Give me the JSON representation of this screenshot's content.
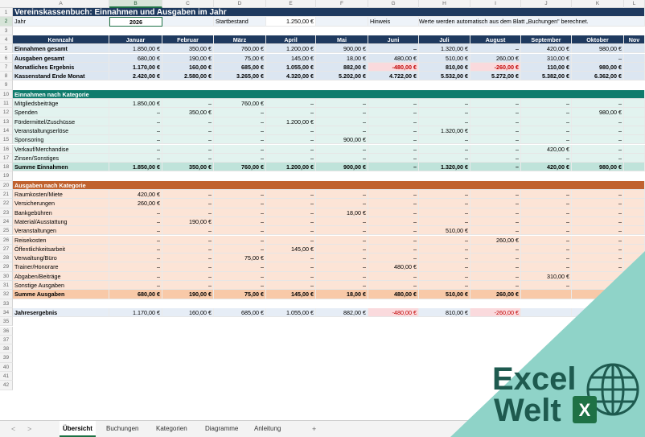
{
  "columns": [
    "A",
    "B",
    "C",
    "D",
    "E",
    "F",
    "G",
    "H",
    "I",
    "J",
    "K",
    "L"
  ],
  "title": "Vereinskassenbuch: Einnahmen und Ausgaben im Jahr",
  "row2": {
    "jahr_label": "Jahr",
    "jahr": "2026",
    "startbestand_label": "Startbestand",
    "startbestand": "1.250,00 €",
    "hinweis_label": "Hinweis",
    "hinweis": "Werte werden automatisch aus dem Blatt „Buchungen\" berechnet."
  },
  "header": [
    "Kennzahl",
    "Januar",
    "Februar",
    "März",
    "April",
    "Mai",
    "Juni",
    "Juli",
    "August",
    "September",
    "Oktober",
    "Nov"
  ],
  "kpis": [
    {
      "label": "Einnahmen gesamt",
      "values": [
        "1.850,00 €",
        "350,00 €",
        "760,00 €",
        "1.200,00 €",
        "900,00 €",
        "–",
        "1.320,00 €",
        "–",
        "420,00 €",
        "980,00 €",
        ""
      ]
    },
    {
      "label": "Ausgaben gesamt",
      "values": [
        "680,00 €",
        "190,00 €",
        "75,00 €",
        "145,00 €",
        "18,00 €",
        "480,00 €",
        "510,00 €",
        "260,00 €",
        "310,00 €",
        "–",
        ""
      ]
    },
    {
      "label": "Monatliches Ergebnis",
      "values": [
        "1.170,00 €",
        "160,00 €",
        "685,00 €",
        "1.055,00 €",
        "882,00 €",
        "-480,00 €",
        "810,00 €",
        "-260,00 €",
        "110,00 €",
        "980,00 €",
        ""
      ]
    },
    {
      "label": "Kassenstand Ende Monat",
      "values": [
        "2.420,00 €",
        "2.580,00 €",
        "3.265,00 €",
        "4.320,00 €",
        "5.202,00 €",
        "4.722,00 €",
        "5.532,00 €",
        "5.272,00 €",
        "5.382,00 €",
        "6.362,00 €",
        ""
      ]
    }
  ],
  "income_section": "Einnahmen nach Kategorie",
  "income": [
    {
      "label": "Mitgliedsbeiträge",
      "values": [
        "1.850,00 €",
        "–",
        "760,00 €",
        "–",
        "–",
        "–",
        "–",
        "–",
        "–",
        "–"
      ]
    },
    {
      "label": "Spenden",
      "values": [
        "–",
        "350,00 €",
        "–",
        "–",
        "–",
        "–",
        "–",
        "–",
        "–",
        "980,00 €"
      ]
    },
    {
      "label": "Fördermittel/Zuschüsse",
      "values": [
        "–",
        "–",
        "–",
        "1.200,00 €",
        "–",
        "–",
        "–",
        "–",
        "–",
        "–"
      ]
    },
    {
      "label": "Veranstaltungserlöse",
      "values": [
        "–",
        "–",
        "–",
        "–",
        "–",
        "–",
        "1.320,00 €",
        "–",
        "–",
        "–"
      ]
    },
    {
      "label": "Sponsoring",
      "values": [
        "–",
        "–",
        "–",
        "–",
        "900,00 €",
        "–",
        "–",
        "–",
        "–",
        "–"
      ]
    },
    {
      "label": "Verkauf/Merchandise",
      "values": [
        "–",
        "–",
        "–",
        "–",
        "–",
        "–",
        "–",
        "–",
        "420,00 €",
        "–"
      ]
    },
    {
      "label": "Zinsen/Sonstiges",
      "values": [
        "–",
        "–",
        "–",
        "–",
        "–",
        "–",
        "–",
        "–",
        "–",
        "–"
      ]
    }
  ],
  "income_sum": {
    "label": "Summe Einnahmen",
    "values": [
      "1.850,00 €",
      "350,00 €",
      "760,00 €",
      "1.200,00 €",
      "900,00 €",
      "–",
      "1.320,00 €",
      "–",
      "420,00 €",
      "980,00 €"
    ]
  },
  "expense_section": "Ausgaben nach Kategorie",
  "expenses": [
    {
      "label": "Raumkosten/Miete",
      "values": [
        "420,00 €",
        "–",
        "–",
        "–",
        "–",
        "–",
        "–",
        "–",
        "–",
        "–"
      ]
    },
    {
      "label": "Versicherungen",
      "values": [
        "260,00 €",
        "–",
        "–",
        "–",
        "–",
        "–",
        "–",
        "–",
        "–",
        "–"
      ]
    },
    {
      "label": "Bankgebühren",
      "values": [
        "–",
        "–",
        "–",
        "–",
        "18,00 €",
        "–",
        "–",
        "–",
        "–",
        "–"
      ]
    },
    {
      "label": "Material/Ausstattung",
      "values": [
        "–",
        "190,00 €",
        "–",
        "–",
        "–",
        "–",
        "–",
        "–",
        "–",
        "–"
      ]
    },
    {
      "label": "Veranstaltungen",
      "values": [
        "–",
        "–",
        "–",
        "–",
        "–",
        "–",
        "510,00 €",
        "–",
        "–",
        "–"
      ]
    },
    {
      "label": "Reisekosten",
      "values": [
        "–",
        "–",
        "–",
        "–",
        "–",
        "–",
        "–",
        "260,00 €",
        "–",
        "–"
      ]
    },
    {
      "label": "Öffentlichkeitsarbeit",
      "values": [
        "–",
        "–",
        "–",
        "145,00 €",
        "–",
        "–",
        "–",
        "–",
        "–",
        "–"
      ]
    },
    {
      "label": "Verwaltung/Büro",
      "values": [
        "–",
        "–",
        "75,00 €",
        "–",
        "–",
        "–",
        "–",
        "–",
        "–",
        "–"
      ]
    },
    {
      "label": "Trainer/Honorare",
      "values": [
        "–",
        "–",
        "–",
        "–",
        "–",
        "480,00 €",
        "–",
        "–",
        "–",
        "–"
      ]
    },
    {
      "label": "Abgaben/Beiträge",
      "values": [
        "–",
        "–",
        "–",
        "–",
        "–",
        "–",
        "–",
        "–",
        "310,00 €",
        "–"
      ]
    },
    {
      "label": "Sonstige Ausgaben",
      "values": [
        "–",
        "–",
        "–",
        "–",
        "–",
        "–",
        "–",
        "–",
        "–",
        "–"
      ]
    }
  ],
  "expense_sum": {
    "label": "Summe Ausgaben",
    "values": [
      "680,00 €",
      "190,00 €",
      "75,00 €",
      "145,00 €",
      "18,00 €",
      "480,00 €",
      "510,00 €",
      "260,00 €",
      "",
      ""
    ]
  },
  "result": {
    "label": "Jahresergebnis",
    "values": [
      "1.170,00 €",
      "160,00 €",
      "685,00 €",
      "1.055,00 €",
      "882,00 €",
      "-480,00 €",
      "810,00 €",
      "-260,00 €",
      "",
      ""
    ]
  },
  "row_numbers": [
    "1",
    "2",
    "3",
    "4",
    "5",
    "6",
    "7",
    "8",
    "9",
    "10",
    "11",
    "12",
    "13",
    "14",
    "15",
    "16",
    "17",
    "18",
    "19",
    "20",
    "21",
    "22",
    "23",
    "24",
    "25",
    "26",
    "27",
    "28",
    "29",
    "30",
    "31",
    "32",
    "33",
    "34",
    "35",
    "36",
    "37",
    "38",
    "39",
    "40",
    "41",
    "42"
  ],
  "tabs": [
    "Übersicht",
    "Buchungen",
    "Kategorien",
    "Diagramme",
    "Anleitung"
  ],
  "nav": {
    "prev": "<",
    "next": ">",
    "add": "+"
  },
  "logo": {
    "line1": "Excel",
    "line2": "Welt"
  },
  "colors": {
    "title_bg": "#1f3a5f",
    "header_bg": "#1f3a5f",
    "kpi_bg": "#dce6f1",
    "income_hdr": "#0f7b6c",
    "income_bg": "#e2f3ef",
    "income_sum": "#bfe3da",
    "expense_hdr": "#c0622f",
    "expense_bg": "#fce4d6",
    "expense_sum": "#f8c9a8",
    "negative": "#c00000",
    "neg_bg": "#fadadd",
    "logo_bg": "#8fd3c8",
    "logo_fg": "#1e5a4f"
  }
}
